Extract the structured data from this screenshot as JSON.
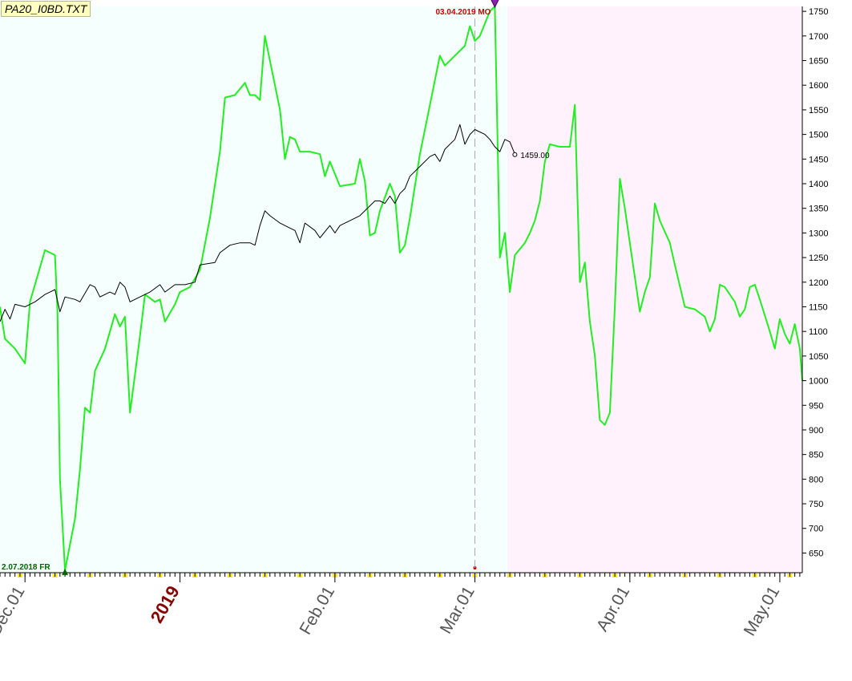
{
  "file_label": "PA20_I0BD.TXT",
  "colors": {
    "forecast_line": "#22ee22",
    "price_line": "#000000",
    "marker_top": "#cc0000",
    "marker_bottom": "#006600",
    "past_zone": "#f5fffd",
    "future_zone": "#fff2fc",
    "weekly_tick": "#ffee00"
  },
  "chart_data": {
    "type": "line",
    "ylim": [
      610,
      1760
    ],
    "yticks": [
      650,
      700,
      750,
      800,
      850,
      900,
      950,
      1000,
      1050,
      1100,
      1150,
      1200,
      1250,
      1300,
      1350,
      1400,
      1450,
      1500,
      1550,
      1600,
      1650,
      1700,
      1750
    ],
    "x_labels": [
      {
        "t": 3,
        "text": "Dec.01",
        "style": "normal"
      },
      {
        "t": 34,
        "text": "2019",
        "style": "year"
      },
      {
        "t": 65,
        "text": "Feb.01",
        "style": "normal"
      },
      {
        "t": 93,
        "text": "Mar.01",
        "style": "normal"
      },
      {
        "t": 124,
        "text": "Apr.01",
        "style": "normal"
      },
      {
        "t": 154,
        "text": "May.01",
        "style": "normal"
      }
    ],
    "x_range": [
      -2,
      158.5
    ],
    "future_start_t": 99.5,
    "cursor_t": 93,
    "series": [
      {
        "role": "forecast",
        "points": [
          [
            -2,
            1150
          ],
          [
            -1,
            1085
          ],
          [
            1,
            1065
          ],
          [
            3,
            1035
          ],
          [
            4,
            1160
          ],
          [
            7,
            1265
          ],
          [
            9,
            1255
          ],
          [
            9.5,
            1140
          ],
          [
            10,
            800
          ],
          [
            11,
            615
          ],
          [
            13,
            720
          ],
          [
            14,
            820
          ],
          [
            15,
            945
          ],
          [
            16,
            935
          ],
          [
            17,
            1020
          ],
          [
            19,
            1065
          ],
          [
            21,
            1135
          ],
          [
            22,
            1110
          ],
          [
            23,
            1130
          ],
          [
            24,
            935
          ],
          [
            26,
            1090
          ],
          [
            27,
            1175
          ],
          [
            29,
            1160
          ],
          [
            30,
            1165
          ],
          [
            31,
            1120
          ],
          [
            33,
            1155
          ],
          [
            34,
            1180
          ],
          [
            36,
            1190
          ],
          [
            38,
            1225
          ],
          [
            40,
            1330
          ],
          [
            42,
            1465
          ],
          [
            43,
            1575
          ],
          [
            45,
            1580
          ],
          [
            47,
            1605
          ],
          [
            48,
            1580
          ],
          [
            49,
            1580
          ],
          [
            50,
            1570
          ],
          [
            51,
            1700
          ],
          [
            54,
            1550
          ],
          [
            55,
            1450
          ],
          [
            56,
            1495
          ],
          [
            57,
            1490
          ],
          [
            58,
            1465
          ],
          [
            60,
            1465
          ],
          [
            62,
            1460
          ],
          [
            63,
            1415
          ],
          [
            64,
            1445
          ],
          [
            66,
            1395
          ],
          [
            69,
            1400
          ],
          [
            70,
            1450
          ],
          [
            71,
            1405
          ],
          [
            72,
            1295
          ],
          [
            73,
            1300
          ],
          [
            74,
            1345
          ],
          [
            76,
            1400
          ],
          [
            77,
            1375
          ],
          [
            78,
            1260
          ],
          [
            79,
            1275
          ],
          [
            80,
            1330
          ],
          [
            82,
            1460
          ],
          [
            84,
            1560
          ],
          [
            86,
            1660
          ],
          [
            87,
            1640
          ],
          [
            89,
            1660
          ],
          [
            91,
            1680
          ],
          [
            92,
            1720
          ],
          [
            93,
            1690
          ],
          [
            94,
            1700
          ],
          [
            96,
            1750
          ],
          [
            97,
            1760
          ],
          [
            98,
            1250
          ],
          [
            99,
            1300
          ],
          [
            100,
            1180
          ],
          [
            101,
            1255
          ],
          [
            103,
            1280
          ],
          [
            104,
            1300
          ],
          [
            105,
            1325
          ],
          [
            106,
            1365
          ],
          [
            107,
            1445
          ],
          [
            108,
            1480
          ],
          [
            110,
            1475
          ],
          [
            112,
            1475
          ],
          [
            113,
            1560
          ],
          [
            114,
            1200
          ],
          [
            115,
            1240
          ],
          [
            116,
            1120
          ],
          [
            117,
            1050
          ],
          [
            118,
            920
          ],
          [
            119,
            910
          ],
          [
            120,
            935
          ],
          [
            121,
            1150
          ],
          [
            122,
            1410
          ],
          [
            123,
            1350
          ],
          [
            124,
            1280
          ],
          [
            125,
            1210
          ],
          [
            126,
            1140
          ],
          [
            127,
            1180
          ],
          [
            128,
            1210
          ],
          [
            129,
            1360
          ],
          [
            130,
            1325
          ],
          [
            132,
            1280
          ],
          [
            133,
            1235
          ],
          [
            135,
            1150
          ],
          [
            137,
            1145
          ],
          [
            139,
            1130
          ],
          [
            140,
            1100
          ],
          [
            141,
            1125
          ],
          [
            142,
            1195
          ],
          [
            143,
            1190
          ],
          [
            145,
            1160
          ],
          [
            146,
            1130
          ],
          [
            147,
            1145
          ],
          [
            148,
            1190
          ],
          [
            149,
            1195
          ],
          [
            150,
            1165
          ],
          [
            152,
            1100
          ],
          [
            153,
            1065
          ],
          [
            154,
            1125
          ],
          [
            155,
            1095
          ],
          [
            156,
            1075
          ],
          [
            157,
            1115
          ],
          [
            158,
            1065
          ],
          [
            158.5,
            1000
          ]
        ]
      },
      {
        "role": "price",
        "points": [
          [
            -2,
            1120
          ],
          [
            -1,
            1145
          ],
          [
            0,
            1125
          ],
          [
            1,
            1155
          ],
          [
            3,
            1150
          ],
          [
            5,
            1160
          ],
          [
            7,
            1175
          ],
          [
            8,
            1180
          ],
          [
            9,
            1185
          ],
          [
            10,
            1140
          ],
          [
            11,
            1170
          ],
          [
            13,
            1165
          ],
          [
            14,
            1160
          ],
          [
            16,
            1195
          ],
          [
            17,
            1190
          ],
          [
            18,
            1170
          ],
          [
            20,
            1180
          ],
          [
            21,
            1175
          ],
          [
            22,
            1200
          ],
          [
            23,
            1190
          ],
          [
            24,
            1160
          ],
          [
            26,
            1170
          ],
          [
            28,
            1180
          ],
          [
            30,
            1195
          ],
          [
            31,
            1180
          ],
          [
            33,
            1195
          ],
          [
            35,
            1195
          ],
          [
            37,
            1200
          ],
          [
            38,
            1235
          ],
          [
            41,
            1240
          ],
          [
            42,
            1260
          ],
          [
            44,
            1275
          ],
          [
            46,
            1280
          ],
          [
            48,
            1280
          ],
          [
            49,
            1275
          ],
          [
            50,
            1315
          ],
          [
            51,
            1345
          ],
          [
            52,
            1335
          ],
          [
            54,
            1320
          ],
          [
            56,
            1310
          ],
          [
            57,
            1305
          ],
          [
            58,
            1280
          ],
          [
            59,
            1320
          ],
          [
            61,
            1305
          ],
          [
            62,
            1290
          ],
          [
            64,
            1315
          ],
          [
            65,
            1300
          ],
          [
            66,
            1315
          ],
          [
            68,
            1325
          ],
          [
            70,
            1335
          ],
          [
            72,
            1355
          ],
          [
            73,
            1365
          ],
          [
            74,
            1365
          ],
          [
            75,
            1360
          ],
          [
            76,
            1375
          ],
          [
            77,
            1360
          ],
          [
            78,
            1380
          ],
          [
            79,
            1390
          ],
          [
            80,
            1415
          ],
          [
            82,
            1435
          ],
          [
            84,
            1455
          ],
          [
            85,
            1460
          ],
          [
            86,
            1445
          ],
          [
            87,
            1470
          ],
          [
            89,
            1490
          ],
          [
            90,
            1520
          ],
          [
            91,
            1480
          ],
          [
            92,
            1500
          ],
          [
            93,
            1510
          ],
          [
            95,
            1500
          ],
          [
            96,
            1490
          ],
          [
            97,
            1475
          ],
          [
            98,
            1465
          ],
          [
            99,
            1490
          ],
          [
            100,
            1485
          ],
          [
            101,
            1460
          ]
        ]
      }
    ],
    "annotations": {
      "last_value": {
        "t": 101,
        "value": 1459,
        "text": "1459.00"
      },
      "top_marker": {
        "t": 97,
        "value": 1760,
        "text": "03.04.2019 MO"
      },
      "bottom_marker": {
        "t": 11,
        "value": 615,
        "text": "2.07.2018 FR"
      }
    }
  }
}
